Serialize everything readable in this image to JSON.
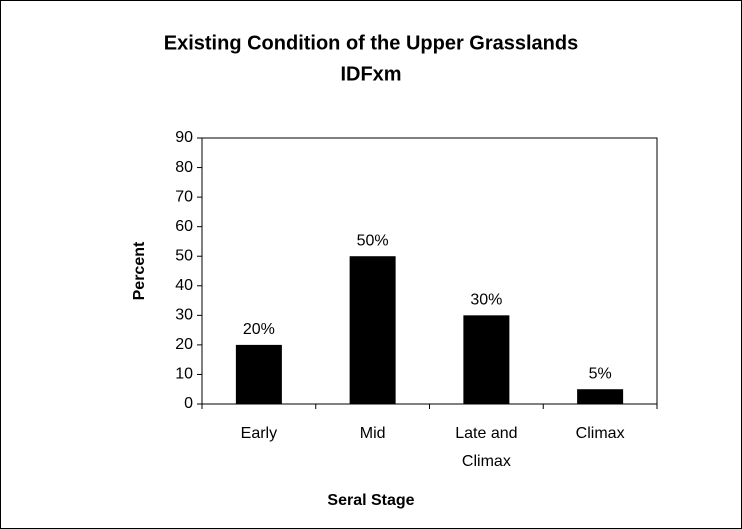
{
  "chart_data": {
    "type": "bar",
    "title": "Existing Condition of the Upper Grasslands",
    "subtitle": "IDFxm",
    "x_label": "Seral Stage",
    "y_label": "Percent",
    "categories": [
      "Early",
      "Mid",
      "Late and Climax",
      "Climax"
    ],
    "values": [
      20,
      50,
      30,
      5
    ],
    "value_labels": [
      "20%",
      "50%",
      "30%",
      "5%"
    ],
    "color": "#000000",
    "ylim": [
      0,
      90
    ],
    "yticks": [
      0,
      10,
      20,
      30,
      40,
      50,
      60,
      70,
      80,
      90
    ],
    "grid": false
  }
}
